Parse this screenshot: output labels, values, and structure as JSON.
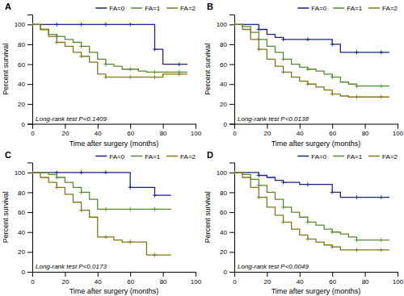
{
  "chart_data": [
    {
      "type": "step",
      "title": "A",
      "annotations": [
        "Long-rank test P<0.1409"
      ],
      "x_label": "Time after surgery (months)",
      "y_label": "Percent survival",
      "x": [
        0,
        5,
        10,
        15,
        20,
        25,
        30,
        35,
        40,
        45,
        50,
        55,
        60,
        65,
        70,
        75,
        80,
        85,
        90,
        95
      ],
      "series": [
        {
          "name": "FA=0",
          "color": "#1a237e",
          "marker": "plus",
          "values": [
            100,
            100,
            100,
            100,
            100,
            100,
            100,
            100,
            100,
            100,
            100,
            100,
            100,
            100,
            100,
            75,
            60,
            60,
            60,
            60
          ]
        },
        {
          "name": "FA=1",
          "color": "#558b2f",
          "marker": "plus",
          "values": [
            100,
            95,
            90,
            88,
            85,
            82,
            78,
            72,
            65,
            60,
            58,
            55,
            55,
            53,
            52,
            52,
            52,
            52,
            52,
            52
          ]
        },
        {
          "name": "FA=2",
          "color": "#827717",
          "marker": "plus",
          "values": [
            100,
            95,
            88,
            82,
            78,
            72,
            68,
            62,
            50,
            47,
            47,
            47,
            47,
            47,
            47,
            47,
            50,
            50,
            50,
            50
          ]
        }
      ],
      "xlim": [
        0,
        100
      ],
      "ylim": [
        0,
        110
      ],
      "xticks": [
        0,
        20,
        40,
        60,
        80,
        100
      ],
      "yticks": [
        0,
        20,
        40,
        60,
        80,
        100
      ],
      "legend": "upper right",
      "grid": false
    },
    {
      "type": "step",
      "title": "B",
      "annotations": [
        "Long-rank test P<0.0138"
      ],
      "x_label": "Time after surgery (months)",
      "y_label": "Percent survival",
      "x": [
        0,
        5,
        10,
        15,
        20,
        25,
        30,
        35,
        40,
        45,
        50,
        55,
        60,
        65,
        70,
        75,
        80,
        85,
        90,
        95
      ],
      "series": [
        {
          "name": "FA=0",
          "color": "#1a237e",
          "marker": "plus",
          "values": [
            100,
            100,
            100,
            95,
            90,
            87,
            85,
            85,
            85,
            85,
            85,
            85,
            80,
            72,
            72,
            72,
            72,
            72,
            72,
            72
          ]
        },
        {
          "name": "FA=1",
          "color": "#558b2f",
          "marker": "plus",
          "values": [
            100,
            98,
            92,
            85,
            78,
            72,
            65,
            60,
            57,
            55,
            53,
            50,
            47,
            42,
            40,
            38,
            38,
            38,
            38,
            38
          ]
        },
        {
          "name": "FA=2",
          "color": "#827717",
          "marker": "plus",
          "values": [
            100,
            95,
            85,
            75,
            65,
            58,
            52,
            47,
            43,
            40,
            37,
            34,
            30,
            28,
            27,
            27,
            27,
            27,
            27,
            27
          ]
        }
      ],
      "xlim": [
        0,
        100
      ],
      "ylim": [
        0,
        110
      ],
      "xticks": [
        0,
        20,
        40,
        60,
        80,
        100
      ],
      "yticks": [
        0,
        20,
        40,
        60,
        80,
        100
      ],
      "legend": "upper right",
      "grid": false
    },
    {
      "type": "step",
      "title": "C",
      "annotations": [
        "Long-rank test P<0.0173"
      ],
      "x_label": "Time after surgery (months)",
      "y_label": "Percent survival",
      "x": [
        0,
        5,
        10,
        15,
        20,
        25,
        30,
        35,
        40,
        45,
        50,
        55,
        60,
        65,
        70,
        75,
        80,
        85
      ],
      "series": [
        {
          "name": "FA=0",
          "color": "#1a237e",
          "marker": "plus",
          "values": [
            100,
            100,
            100,
            100,
            100,
            100,
            100,
            100,
            100,
            100,
            100,
            100,
            85,
            85,
            85,
            77,
            77,
            77
          ]
        },
        {
          "name": "FA=1",
          "color": "#558b2f",
          "marker": "plus",
          "values": [
            100,
            100,
            98,
            95,
            90,
            85,
            80,
            73,
            63,
            63,
            63,
            63,
            63,
            63,
            63,
            63,
            63,
            63
          ]
        },
        {
          "name": "FA=2",
          "color": "#827717",
          "marker": "plus",
          "values": [
            100,
            95,
            90,
            85,
            78,
            70,
            62,
            55,
            35,
            35,
            32,
            30,
            30,
            30,
            17,
            17,
            17,
            17
          ]
        }
      ],
      "xlim": [
        0,
        100
      ],
      "ylim": [
        0,
        110
      ],
      "xticks": [
        0,
        20,
        40,
        60,
        80,
        100
      ],
      "yticks": [
        0,
        20,
        40,
        60,
        80,
        100
      ],
      "legend": "upper right",
      "grid": false
    },
    {
      "type": "step",
      "title": "D",
      "annotations": [
        "Long-rank test P<0.0049"
      ],
      "x_label": "Time after surgery (months)",
      "y_label": "Percent survival",
      "x": [
        0,
        5,
        10,
        15,
        20,
        25,
        30,
        35,
        40,
        45,
        50,
        55,
        60,
        65,
        70,
        75,
        80,
        85,
        90,
        95
      ],
      "series": [
        {
          "name": "FA=0",
          "color": "#1a237e",
          "marker": "plus",
          "values": [
            100,
            100,
            100,
            97,
            95,
            92,
            90,
            90,
            88,
            88,
            88,
            88,
            80,
            75,
            75,
            75,
            75,
            75,
            75,
            75
          ]
        },
        {
          "name": "FA=1",
          "color": "#558b2f",
          "marker": "plus",
          "values": [
            100,
            98,
            93,
            87,
            80,
            73,
            65,
            60,
            55,
            50,
            47,
            43,
            40,
            38,
            35,
            32,
            32,
            32,
            32,
            32
          ]
        },
        {
          "name": "FA=2",
          "color": "#827717",
          "marker": "plus",
          "values": [
            100,
            95,
            85,
            75,
            65,
            57,
            50,
            43,
            37,
            33,
            30,
            27,
            25,
            22,
            22,
            22,
            22,
            22,
            22,
            22
          ]
        }
      ],
      "xlim": [
        0,
        100
      ],
      "ylim": [
        0,
        110
      ],
      "xticks": [
        0,
        20,
        40,
        60,
        80,
        100
      ],
      "yticks": [
        0,
        20,
        40,
        60,
        80,
        100
      ],
      "legend": "upper right",
      "grid": false
    }
  ]
}
